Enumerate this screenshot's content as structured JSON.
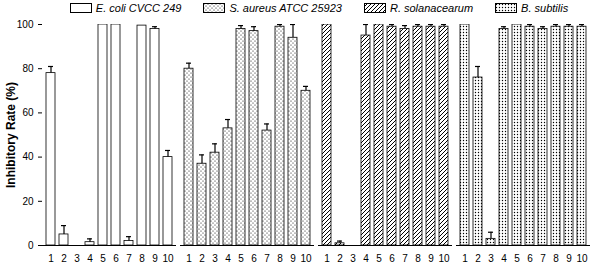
{
  "chart_data": {
    "type": "bar",
    "y_label": "Inhibitory Rate (%)",
    "categories": [
      "1",
      "2",
      "3",
      "4",
      "5",
      "6",
      "7",
      "8",
      "9",
      "10"
    ],
    "series": [
      {
        "name": "E. coli CVCC 249",
        "color": "#000000",
        "values": [
          78,
          5,
          0,
          1.5,
          100,
          100,
          2,
          99.5,
          98,
          40
        ],
        "errors": [
          3,
          4,
          0,
          1.5,
          0,
          0,
          2,
          0,
          1,
          3
        ]
      },
      {
        "name": "S. aureus ATCC 25923",
        "color": "#000000",
        "values": [
          80,
          37,
          42,
          53,
          98,
          97,
          52,
          99,
          94,
          70
        ],
        "errors": [
          2.5,
          4,
          4,
          4,
          1.5,
          2,
          3,
          1,
          6,
          2
        ]
      },
      {
        "name": "R. solanacearum",
        "color": "#000000",
        "values": [
          100,
          1,
          0,
          95,
          100,
          99,
          98,
          99,
          99,
          99
        ],
        "errors": [
          0,
          1,
          0,
          5,
          0,
          1,
          1.5,
          1,
          1,
          1
        ]
      },
      {
        "name": "B. subtilis",
        "color": "#000000",
        "values": [
          100,
          76,
          3,
          98,
          100,
          99,
          98,
          99,
          99,
          99
        ],
        "errors": [
          0,
          5,
          3,
          1,
          0,
          1,
          1,
          1,
          1,
          1
        ]
      }
    ],
    "ylim": [
      0,
      100
    ],
    "yticks": [
      0,
      20,
      40,
      60,
      80,
      100
    ],
    "legend": "top"
  }
}
